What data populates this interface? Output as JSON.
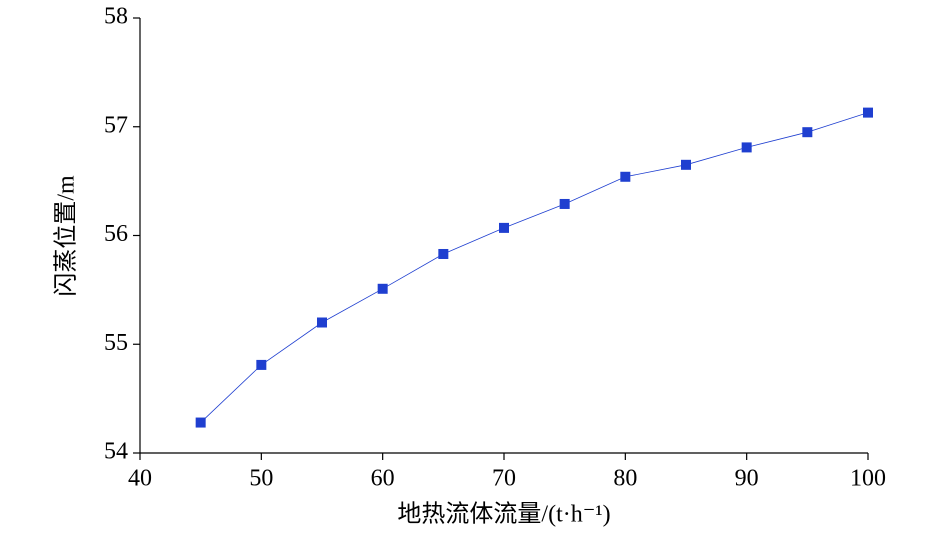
{
  "chart_data": {
    "type": "line",
    "x_label": "地热流体流量/(t·h⁻¹)",
    "y_label": "闪蒸位置/m",
    "x": [
      45,
      50,
      55,
      60,
      65,
      70,
      75,
      80,
      85,
      90,
      95,
      100
    ],
    "series": [
      {
        "name": "闪蒸位置",
        "color": "#1f3fd0",
        "values": [
          54.28,
          54.81,
          55.2,
          55.51,
          55.83,
          56.07,
          56.29,
          56.54,
          56.65,
          56.81,
          56.95,
          57.13
        ]
      }
    ],
    "xlim": [
      40,
      100
    ],
    "xticks": [
      40,
      50,
      60,
      70,
      80,
      90,
      100
    ],
    "ylim": [
      54,
      58
    ],
    "yticks": [
      54,
      55,
      56,
      57,
      58
    ]
  }
}
